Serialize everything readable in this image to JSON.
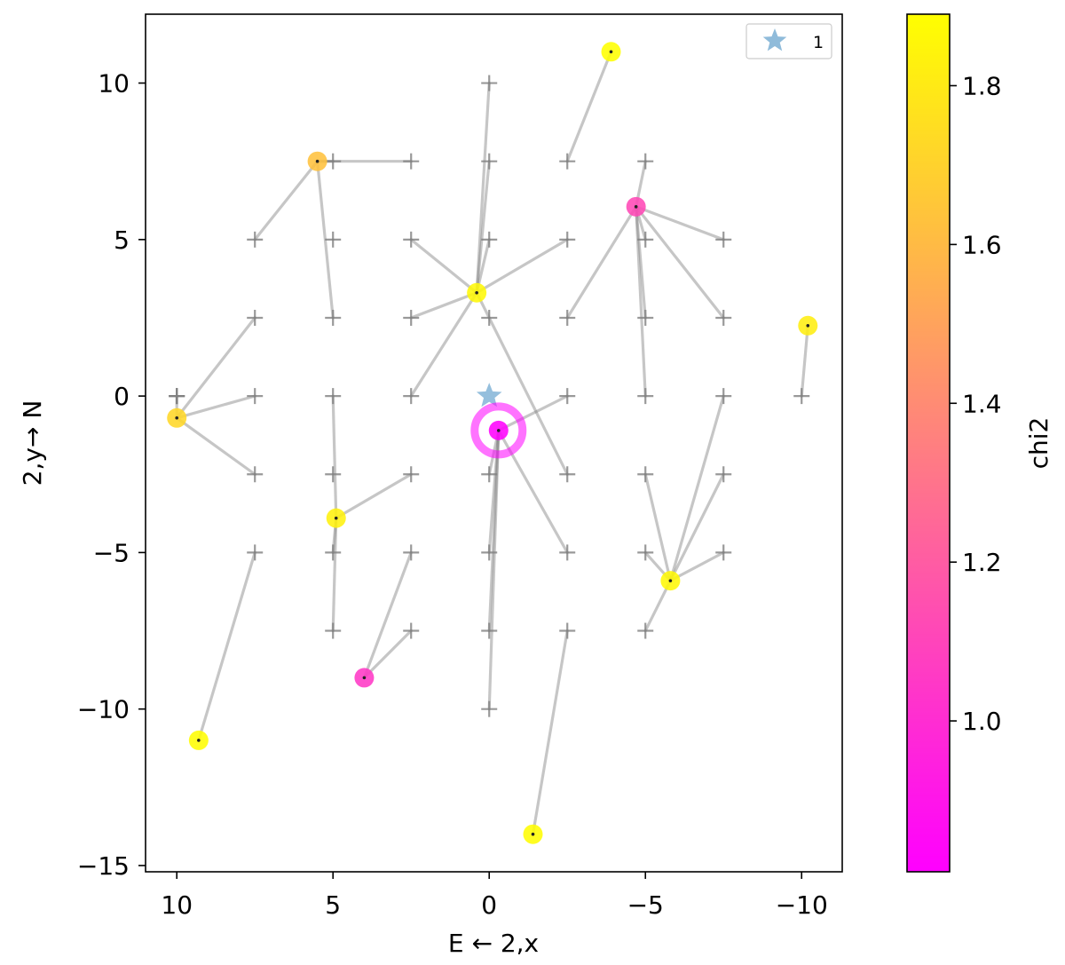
{
  "chart_data": {
    "type": "scatter",
    "title": "",
    "xlabel": "E ← 2,x",
    "ylabel": "2,y→ N",
    "xlim": [
      11,
      -11.3
    ],
    "ylim": [
      -15.2,
      12.2
    ],
    "x_ticks": [
      10,
      5,
      0,
      -5,
      -10
    ],
    "y_ticks": [
      10,
      5,
      0,
      -5,
      -10,
      -15
    ],
    "x_tick_labels": [
      "10",
      "5",
      "0",
      "−5",
      "−10"
    ],
    "y_tick_labels": [
      "10",
      "5",
      "0",
      "−5",
      "−10",
      "−15"
    ],
    "grid": false,
    "legend": {
      "position": "top-right",
      "entries": [
        {
          "label": "1",
          "marker": "star",
          "color": "#7bafd4"
        }
      ]
    },
    "reference_star": {
      "x": 0,
      "y": 0,
      "color": "#7bafd4"
    },
    "best_fit_marker": {
      "x": -0.3,
      "y": -1.1,
      "color": "#ff00ff"
    },
    "grid_starts": [
      [
        10,
        0
      ],
      [
        10,
        0
      ],
      [
        10,
        0
      ],
      [
        7.5,
        2.5
      ],
      [
        7.5,
        0
      ],
      [
        7.5,
        -2.5
      ],
      [
        7.5,
        -5
      ],
      [
        7.5,
        5
      ],
      [
        5,
        0
      ],
      [
        5,
        -2.5
      ],
      [
        5,
        -5
      ],
      [
        5,
        -7.5
      ],
      [
        5,
        5
      ],
      [
        5,
        2.5
      ],
      [
        5,
        7.5
      ],
      [
        2.5,
        7.5
      ],
      [
        2.5,
        5
      ],
      [
        2.5,
        2.5
      ],
      [
        2.5,
        0
      ],
      [
        2.5,
        -2.5
      ],
      [
        2.5,
        -5
      ],
      [
        2.5,
        -7.5
      ],
      [
        0,
        10
      ],
      [
        0,
        7.5
      ],
      [
        0,
        5
      ],
      [
        0,
        2.5
      ],
      [
        0,
        -2.5
      ],
      [
        0,
        -5
      ],
      [
        0,
        -7.5
      ],
      [
        0,
        -10
      ],
      [
        -2.5,
        5
      ],
      [
        -2.5,
        2.5
      ],
      [
        -2.5,
        0
      ],
      [
        -2.5,
        -2.5
      ],
      [
        -2.5,
        -5
      ],
      [
        -2.5,
        -7.5
      ],
      [
        -2.5,
        7.5
      ],
      [
        -5,
        7.5
      ],
      [
        -5,
        5
      ],
      [
        -5,
        2.5
      ],
      [
        -5,
        0
      ],
      [
        -5,
        -2.5
      ],
      [
        -5,
        -5
      ],
      [
        -5,
        -7.5
      ],
      [
        -7.5,
        5
      ],
      [
        -7.5,
        2.5
      ],
      [
        -7.5,
        0
      ],
      [
        -7.5,
        -2.5
      ],
      [
        -7.5,
        -5
      ],
      [
        -10,
        0
      ]
    ],
    "tracks": [
      {
        "from": [
          7.5,
          5
        ],
        "to": [
          5.5,
          7.5
        ]
      },
      {
        "from": [
          5,
          2.5
        ],
        "to": [
          5.5,
          7.5
        ]
      },
      {
        "from": [
          2.5,
          7.5
        ],
        "to": [
          5.5,
          7.5
        ]
      },
      {
        "from": [
          5,
          7.5
        ],
        "to": [
          5.5,
          7.5
        ]
      },
      {
        "from": [
          0,
          10
        ],
        "to": [
          0.4,
          3.3
        ]
      },
      {
        "from": [
          0,
          7.5
        ],
        "to": [
          0.4,
          3.3
        ]
      },
      {
        "from": [
          0,
          5
        ],
        "to": [
          0.4,
          3.3
        ]
      },
      {
        "from": [
          2.5,
          5
        ],
        "to": [
          0.4,
          3.3
        ]
      },
      {
        "from": [
          2.5,
          2.5
        ],
        "to": [
          0.4,
          3.3
        ]
      },
      {
        "from": [
          -2.5,
          5
        ],
        "to": [
          0.4,
          3.3
        ]
      },
      {
        "from": [
          2.5,
          0
        ],
        "to": [
          0.4,
          3.3
        ]
      },
      {
        "from": [
          -2.5,
          -2.5
        ],
        "to": [
          0.4,
          3.3
        ]
      },
      {
        "from": [
          7.5,
          2.5
        ],
        "to": [
          10,
          -0.7
        ]
      },
      {
        "from": [
          7.5,
          0
        ],
        "to": [
          10,
          -0.7
        ]
      },
      {
        "from": [
          7.5,
          -2.5
        ],
        "to": [
          10,
          -0.7
        ]
      },
      {
        "from": [
          10,
          0
        ],
        "to": [
          10,
          -0.7
        ]
      },
      {
        "from": [
          5,
          0
        ],
        "to": [
          4.9,
          -3.9
        ]
      },
      {
        "from": [
          5,
          -5
        ],
        "to": [
          4.9,
          -3.9
        ]
      },
      {
        "from": [
          5,
          -7.5
        ],
        "to": [
          4.9,
          -3.9
        ]
      },
      {
        "from": [
          2.5,
          -2.5
        ],
        "to": [
          4.9,
          -3.9
        ]
      },
      {
        "from": [
          2.5,
          -5
        ],
        "to": [
          4,
          -9
        ]
      },
      {
        "from": [
          2.5,
          -7.5
        ],
        "to": [
          4,
          -9
        ]
      },
      {
        "from": [
          7.5,
          -5
        ],
        "to": [
          9.3,
          -11
        ]
      },
      {
        "from": [
          -2.5,
          -7.5
        ],
        "to": [
          -1.4,
          -14
        ]
      },
      {
        "from": [
          -2.5,
          7.5
        ],
        "to": [
          -3.9,
          11
        ]
      },
      {
        "from": [
          -5,
          7.5
        ],
        "to": [
          -4.7,
          6.05
        ]
      },
      {
        "from": [
          -5,
          5
        ],
        "to": [
          -4.7,
          6.05
        ]
      },
      {
        "from": [
          -5,
          2.5
        ],
        "to": [
          -4.7,
          6.05
        ]
      },
      {
        "from": [
          -5,
          0
        ],
        "to": [
          -4.7,
          6.05
        ]
      },
      {
        "from": [
          -7.5,
          5
        ],
        "to": [
          -4.7,
          6.05
        ]
      },
      {
        "from": [
          -7.5,
          2.5
        ],
        "to": [
          -4.7,
          6.05
        ]
      },
      {
        "from": [
          -2.5,
          2.5
        ],
        "to": [
          -4.7,
          6.05
        ]
      },
      {
        "from": [
          -5,
          -2.5
        ],
        "to": [
          -5.8,
          -5.9
        ]
      },
      {
        "from": [
          -5,
          -7.5
        ],
        "to": [
          -5.8,
          -5.9
        ]
      },
      {
        "from": [
          -7.5,
          -2.5
        ],
        "to": [
          -5.8,
          -5.9
        ]
      },
      {
        "from": [
          -7.5,
          -5
        ],
        "to": [
          -5.8,
          -5.9
        ]
      },
      {
        "from": [
          -7.5,
          0
        ],
        "to": [
          -5.8,
          -5.9
        ]
      },
      {
        "from": [
          -5,
          -5
        ],
        "to": [
          -5.8,
          -5.9
        ]
      },
      {
        "from": [
          0,
          -2.5
        ],
        "to": [
          -0.3,
          -1.1
        ]
      },
      {
        "from": [
          0,
          -5
        ],
        "to": [
          -0.3,
          -1.1
        ]
      },
      {
        "from": [
          0,
          -7.5
        ],
        "to": [
          -0.3,
          -1.1
        ]
      },
      {
        "from": [
          0,
          -10
        ],
        "to": [
          -0.3,
          -1.1
        ]
      },
      {
        "from": [
          -2.5,
          -5
        ],
        "to": [
          -0.3,
          -1.1
        ]
      },
      {
        "from": [
          -2.5,
          0
        ],
        "to": [
          -0.3,
          -1.1
        ]
      },
      {
        "from": [
          -10,
          0
        ],
        "to": [
          -10.2,
          2.25
        ]
      }
    ],
    "points": [
      {
        "x": 5.5,
        "y": 7.5,
        "chi2": 1.63
      },
      {
        "x": 0.4,
        "y": 3.3,
        "chi2": 1.86
      },
      {
        "x": 10,
        "y": -0.7,
        "chi2": 1.72
      },
      {
        "x": 4.9,
        "y": -3.9,
        "chi2": 1.83
      },
      {
        "x": 4,
        "y": -9,
        "chi2": 1.05
      },
      {
        "x": 9.3,
        "y": -11,
        "chi2": 1.88
      },
      {
        "x": -1.4,
        "y": -14,
        "chi2": 1.88
      },
      {
        "x": -3.9,
        "y": 11,
        "chi2": 1.89
      },
      {
        "x": -4.7,
        "y": 6.05,
        "chi2": 1.12
      },
      {
        "x": -5.8,
        "y": -5.9,
        "chi2": 1.86
      },
      {
        "x": -10.2,
        "y": 2.25,
        "chi2": 1.82
      },
      {
        "x": -0.3,
        "y": -1.1,
        "chi2": 0.82
      }
    ],
    "colorbar": {
      "label": "chi2",
      "range": [
        0.81,
        1.89
      ],
      "ticks": [
        1.0,
        1.2,
        1.4,
        1.6,
        1.8
      ],
      "tick_labels": [
        "1.0",
        "1.2",
        "1.4",
        "1.6",
        "1.8"
      ],
      "colormap": "spring",
      "color_low": "#ff00ff",
      "color_high": "#ffff00"
    },
    "track_color": "#808080",
    "grid_marker_color": "#808080"
  }
}
